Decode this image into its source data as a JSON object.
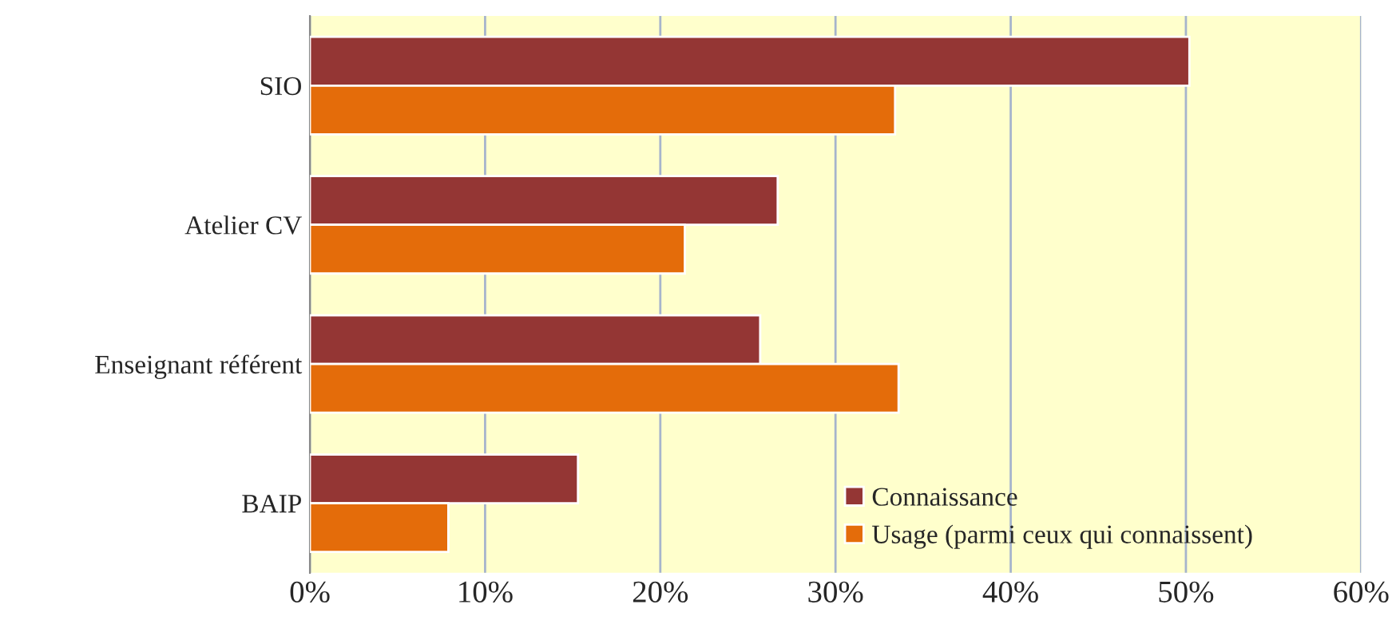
{
  "chart_data": {
    "type": "bar",
    "orientation": "horizontal",
    "categories": [
      "SIO",
      "Atelier CV",
      "Enseignant référent",
      "BAIP"
    ],
    "series": [
      {
        "name": "Connaissance",
        "color": "#943634",
        "values": [
          50.2,
          26.7,
          25.7,
          15.3
        ]
      },
      {
        "name": "Usage (parmi ceux qui connaissent)",
        "color": "#e46c0a",
        "values": [
          33.4,
          21.4,
          33.6,
          7.9
        ]
      }
    ],
    "xlim": [
      0,
      60
    ],
    "xticks": [
      {
        "value": 0,
        "label": "0%"
      },
      {
        "value": 10,
        "label": "10%"
      },
      {
        "value": 20,
        "label": "20%"
      },
      {
        "value": 30,
        "label": "30%"
      },
      {
        "value": 40,
        "label": "40%"
      },
      {
        "value": 50,
        "label": "50%"
      },
      {
        "value": 60,
        "label": "60%"
      }
    ],
    "grid": "x",
    "legend": "bottom right"
  }
}
